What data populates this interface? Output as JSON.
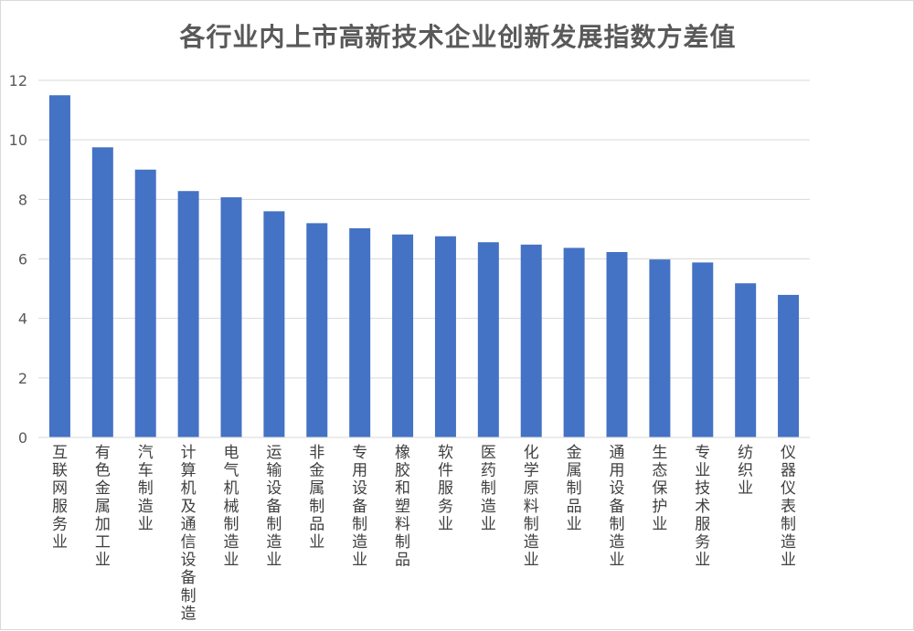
{
  "chart_data": {
    "type": "bar",
    "title": "各行业内上市高新技术企业创新发展指数方差值",
    "xlabel": "",
    "ylabel": "",
    "ylim": [
      0,
      12
    ],
    "yticks": [
      0,
      2,
      4,
      6,
      8,
      10,
      12
    ],
    "grid": true,
    "bar_color": "#4472c4",
    "gridline_color": "#d9d9d9",
    "categories": [
      "互联网服务业",
      "有色金属加工业",
      "汽车制造业",
      "计算机及通信设备制造",
      "电气机械制造业",
      "运输设备制造业",
      "非金属制品业",
      "专用设备制造业",
      "橡胶和塑料制品",
      "软件服务业",
      "医药制造业",
      "化学原料制造业",
      "金属制品业",
      "通用设备制造业",
      "生态保护业",
      "专业技术服务业",
      "纺织业",
      "仪器仪表制造业"
    ],
    "values": [
      11.5,
      9.75,
      9.0,
      8.28,
      8.07,
      7.6,
      7.2,
      7.03,
      6.82,
      6.76,
      6.56,
      6.48,
      6.37,
      6.23,
      5.98,
      5.88,
      5.18,
      4.79
    ]
  }
}
